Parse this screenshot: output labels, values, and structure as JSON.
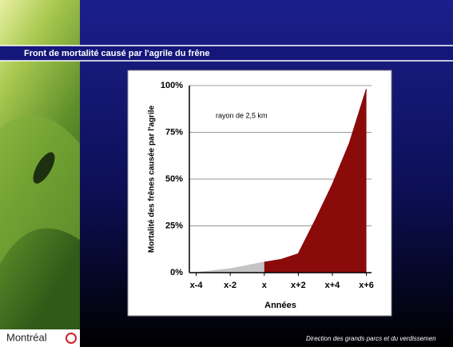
{
  "chart_data": {
    "type": "area",
    "title": "Front de mortalité causé par l'agrile du frêne",
    "y_label": "Mortalité des frênes causée par l'agrile",
    "x_label": "Années",
    "annotation": "rayon de 2,5 km",
    "xlim": [
      -4.4,
      6.3
    ],
    "xticks": [
      {
        "value": -4,
        "label": "x-4"
      },
      {
        "value": -2,
        "label": "x-2"
      },
      {
        "value": 0,
        "label": "x"
      },
      {
        "value": 2,
        "label": "x+2"
      },
      {
        "value": 4,
        "label": "x+4"
      },
      {
        "value": 6,
        "label": "x+6"
      }
    ],
    "ylim": [
      0,
      100
    ],
    "yticks": [
      {
        "value": 0,
        "label": "0%"
      },
      {
        "value": 25,
        "label": "25%"
      },
      {
        "value": 50,
        "label": "50%"
      },
      {
        "value": 75,
        "label": "75%"
      },
      {
        "value": 100,
        "label": "100%"
      }
    ],
    "grid": true,
    "series": [
      {
        "color": "#c4c4c4",
        "x": [
          -4,
          -2,
          0
        ],
        "values": [
          0,
          2,
          5.5
        ]
      },
      {
        "color": "#8b0a0a",
        "x": [
          0,
          1,
          2,
          3,
          4,
          5,
          6
        ],
        "values": [
          5.5,
          7,
          10,
          28,
          47,
          69,
          98
        ]
      }
    ]
  },
  "footer": {
    "logo": "Montréal",
    "credit": "Direction des grands parcs et du verdissemen"
  }
}
